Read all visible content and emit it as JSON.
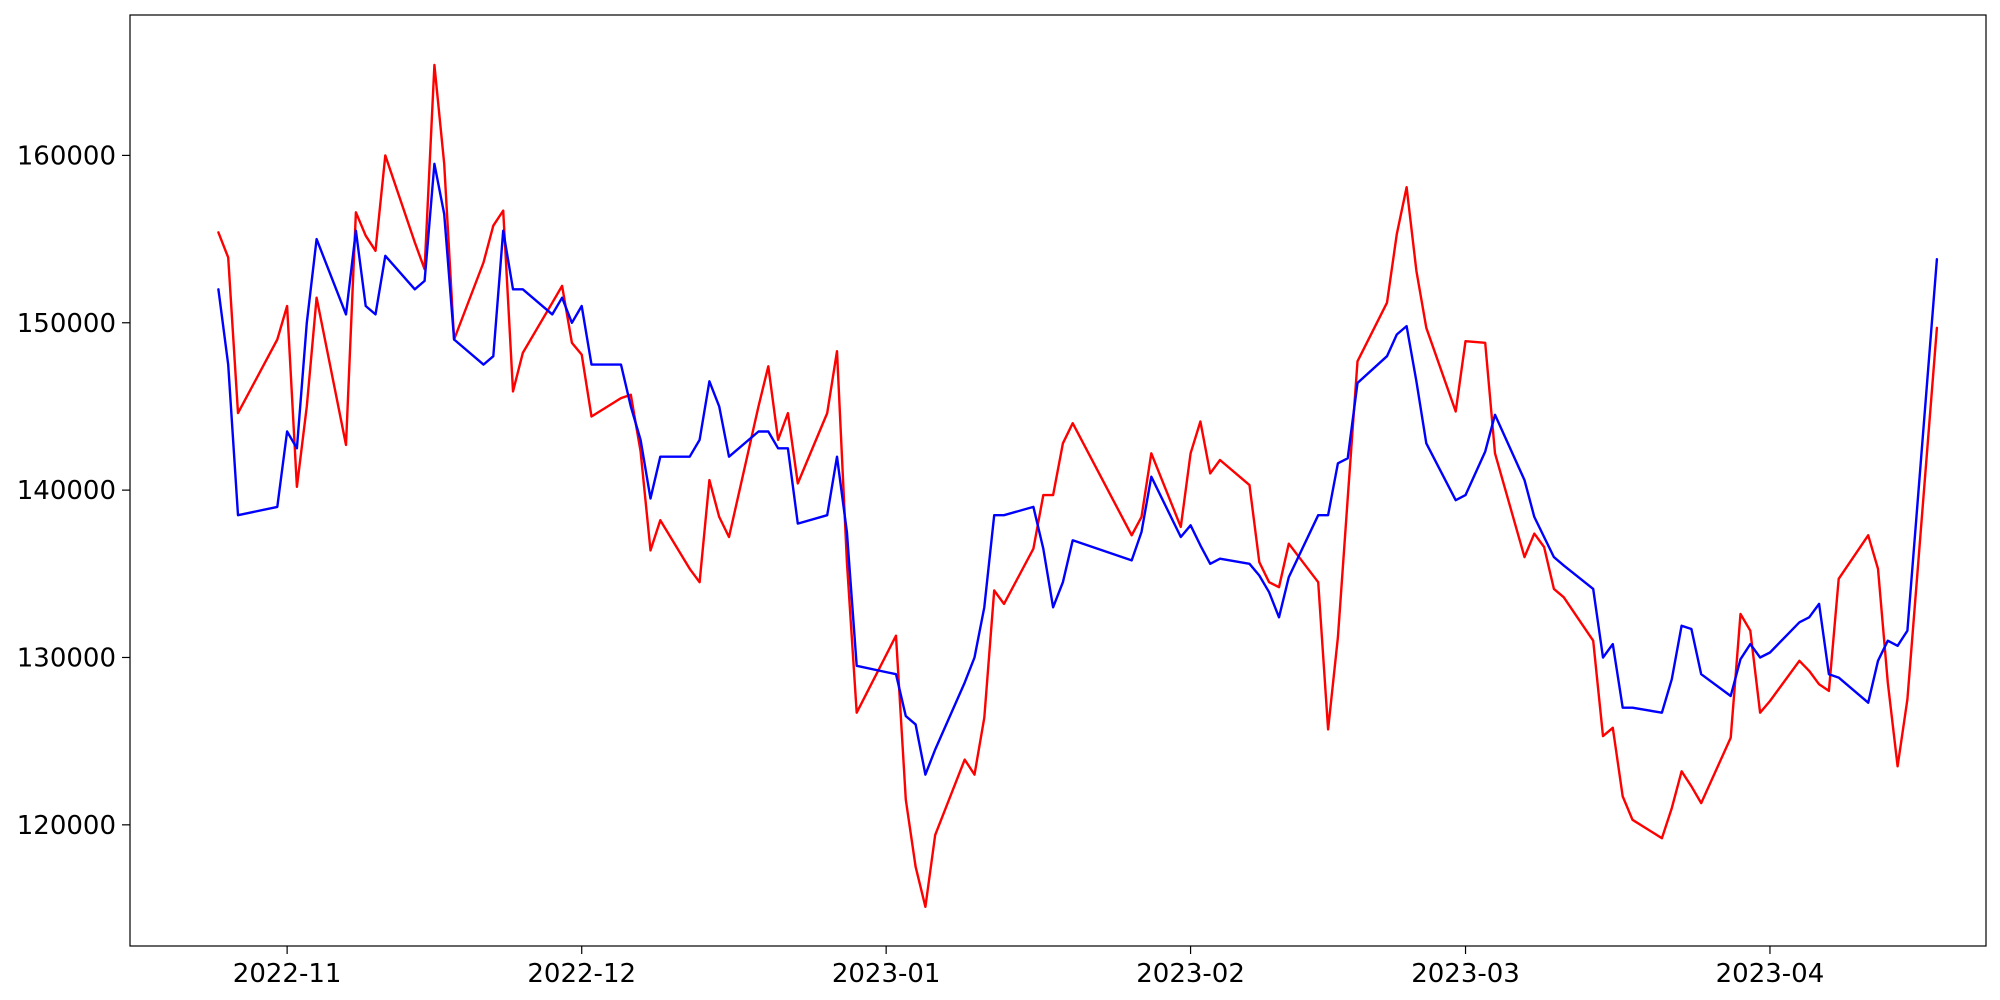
{
  "colors": {
    "background": "#ffffff",
    "axis": "#000000"
  },
  "chart_data": {
    "type": "line",
    "title": "",
    "xlabel": "",
    "ylabel": "",
    "x_type": "date",
    "xlim": [
      "2022-10-16",
      "2023-04-23"
    ],
    "ylim": [
      112760,
      168390
    ],
    "grid": false,
    "legend": "none",
    "x_ticks": [
      {
        "value": "2022-11-01",
        "label": "2022-11"
      },
      {
        "value": "2022-12-01",
        "label": "2022-12"
      },
      {
        "value": "2023-01-01",
        "label": "2023-01"
      },
      {
        "value": "2023-02-01",
        "label": "2023-02"
      },
      {
        "value": "2023-03-01",
        "label": "2023-03"
      },
      {
        "value": "2023-04-01",
        "label": "2023-04"
      }
    ],
    "y_ticks": [
      {
        "value": 120000,
        "label": "120000"
      },
      {
        "value": 130000,
        "label": "130000"
      },
      {
        "value": 140000,
        "label": "140000"
      },
      {
        "value": 150000,
        "label": "150000"
      },
      {
        "value": 160000,
        "label": "160000"
      }
    ],
    "series": [
      {
        "color": "#ff0000",
        "points": [
          [
            "2022-10-25",
            155400
          ],
          [
            "2022-10-26",
            153900
          ],
          [
            "2022-10-27",
            144600
          ],
          [
            "2022-10-31",
            149000
          ],
          [
            "2022-11-01",
            151000
          ],
          [
            "2022-11-02",
            140200
          ],
          [
            "2022-11-03",
            145000
          ],
          [
            "2022-11-04",
            151500
          ],
          [
            "2022-11-07",
            142700
          ],
          [
            "2022-11-08",
            156600
          ],
          [
            "2022-11-09",
            155200
          ],
          [
            "2022-11-10",
            154300
          ],
          [
            "2022-11-11",
            160000
          ],
          [
            "2022-11-14",
            154800
          ],
          [
            "2022-11-15",
            153200
          ],
          [
            "2022-11-16",
            165400
          ],
          [
            "2022-11-17",
            159500
          ],
          [
            "2022-11-18",
            149000
          ],
          [
            "2022-11-21",
            153600
          ],
          [
            "2022-11-22",
            155800
          ],
          [
            "2022-11-23",
            156700
          ],
          [
            "2022-11-24",
            145900
          ],
          [
            "2022-11-25",
            148200
          ],
          [
            "2022-11-28",
            151200
          ],
          [
            "2022-11-29",
            152200
          ],
          [
            "2022-11-30",
            148800
          ],
          [
            "2022-12-01",
            148100
          ],
          [
            "2022-12-02",
            144400
          ],
          [
            "2022-12-05",
            145500
          ],
          [
            "2022-12-06",
            145700
          ],
          [
            "2022-12-07",
            142300
          ],
          [
            "2022-12-08",
            136400
          ],
          [
            "2022-12-09",
            138200
          ],
          [
            "2022-12-12",
            135300
          ],
          [
            "2022-12-13",
            134500
          ],
          [
            "2022-12-14",
            140600
          ],
          [
            "2022-12-15",
            138400
          ],
          [
            "2022-12-16",
            137200
          ],
          [
            "2022-12-19",
            145000
          ],
          [
            "2022-12-20",
            147400
          ],
          [
            "2022-12-21",
            143000
          ],
          [
            "2022-12-22",
            144600
          ],
          [
            "2022-12-23",
            140400
          ],
          [
            "2022-12-26",
            144600
          ],
          [
            "2022-12-27",
            148300
          ],
          [
            "2022-12-28",
            135700
          ],
          [
            "2022-12-29",
            126700
          ],
          [
            "2023-01-02",
            131300
          ],
          [
            "2023-01-03",
            121500
          ],
          [
            "2023-01-04",
            117500
          ],
          [
            "2023-01-05",
            115100
          ],
          [
            "2023-01-06",
            119400
          ],
          [
            "2023-01-09",
            123900
          ],
          [
            "2023-01-10",
            123000
          ],
          [
            "2023-01-11",
            126400
          ],
          [
            "2023-01-12",
            134000
          ],
          [
            "2023-01-13",
            133200
          ],
          [
            "2023-01-16",
            136500
          ],
          [
            "2023-01-17",
            139700
          ],
          [
            "2023-01-18",
            139700
          ],
          [
            "2023-01-19",
            142800
          ],
          [
            "2023-01-20",
            144000
          ],
          [
            "2023-01-26",
            137300
          ],
          [
            "2023-01-27",
            138400
          ],
          [
            "2023-01-28",
            142200
          ],
          [
            "2023-01-31",
            137800
          ],
          [
            "2023-02-01",
            142200
          ],
          [
            "2023-02-02",
            144100
          ],
          [
            "2023-02-03",
            141000
          ],
          [
            "2023-02-04",
            141800
          ],
          [
            "2023-02-07",
            140300
          ],
          [
            "2023-02-08",
            135700
          ],
          [
            "2023-02-09",
            134500
          ],
          [
            "2023-02-10",
            134200
          ],
          [
            "2023-02-11",
            136800
          ],
          [
            "2023-02-14",
            134500
          ],
          [
            "2023-02-15",
            125700
          ],
          [
            "2023-02-16",
            131200
          ],
          [
            "2023-02-17",
            139500
          ],
          [
            "2023-02-18",
            147700
          ],
          [
            "2023-02-21",
            151200
          ],
          [
            "2023-02-22",
            155300
          ],
          [
            "2023-02-23",
            158100
          ],
          [
            "2023-02-24",
            153100
          ],
          [
            "2023-02-25",
            149700
          ],
          [
            "2023-02-28",
            144700
          ],
          [
            "2023-03-01",
            148900
          ],
          [
            "2023-03-03",
            148800
          ],
          [
            "2023-03-04",
            142200
          ],
          [
            "2023-03-07",
            136000
          ],
          [
            "2023-03-08",
            137400
          ],
          [
            "2023-03-09",
            136600
          ],
          [
            "2023-03-10",
            134100
          ],
          [
            "2023-03-11",
            133600
          ],
          [
            "2023-03-14",
            131000
          ],
          [
            "2023-03-15",
            125300
          ],
          [
            "2023-03-16",
            125800
          ],
          [
            "2023-03-17",
            121700
          ],
          [
            "2023-03-18",
            120300
          ],
          [
            "2023-03-21",
            119200
          ],
          [
            "2023-03-22",
            121000
          ],
          [
            "2023-03-23",
            123200
          ],
          [
            "2023-03-24",
            122300
          ],
          [
            "2023-03-25",
            121300
          ],
          [
            "2023-03-28",
            125200
          ],
          [
            "2023-03-29",
            132600
          ],
          [
            "2023-03-30",
            131600
          ],
          [
            "2023-03-31",
            126700
          ],
          [
            "2023-04-01",
            127400
          ],
          [
            "2023-04-04",
            129800
          ],
          [
            "2023-04-05",
            129200
          ],
          [
            "2023-04-06",
            128400
          ],
          [
            "2023-04-07",
            128000
          ],
          [
            "2023-04-08",
            134700
          ],
          [
            "2023-04-11",
            137300
          ],
          [
            "2023-04-12",
            135300
          ],
          [
            "2023-04-13",
            128500
          ],
          [
            "2023-04-14",
            123500
          ],
          [
            "2023-04-15",
            127500
          ],
          [
            "2023-04-18",
            149700
          ]
        ]
      },
      {
        "color": "#0000ff",
        "points": [
          [
            "2022-10-25",
            152000
          ],
          [
            "2022-10-26",
            147500
          ],
          [
            "2022-10-27",
            138500
          ],
          [
            "2022-10-31",
            139000
          ],
          [
            "2022-11-01",
            143500
          ],
          [
            "2022-11-02",
            142500
          ],
          [
            "2022-11-03",
            150000
          ],
          [
            "2022-11-04",
            155000
          ],
          [
            "2022-11-07",
            150500
          ],
          [
            "2022-11-08",
            155500
          ],
          [
            "2022-11-09",
            151000
          ],
          [
            "2022-11-10",
            150500
          ],
          [
            "2022-11-11",
            154000
          ],
          [
            "2022-11-14",
            152000
          ],
          [
            "2022-11-15",
            152500
          ],
          [
            "2022-11-16",
            159500
          ],
          [
            "2022-11-17",
            156500
          ],
          [
            "2022-11-18",
            149000
          ],
          [
            "2022-11-21",
            147500
          ],
          [
            "2022-11-22",
            148000
          ],
          [
            "2022-11-23",
            155500
          ],
          [
            "2022-11-24",
            152000
          ],
          [
            "2022-11-25",
            152000
          ],
          [
            "2022-11-28",
            150500
          ],
          [
            "2022-11-29",
            151500
          ],
          [
            "2022-11-30",
            150000
          ],
          [
            "2022-12-01",
            151000
          ],
          [
            "2022-12-02",
            147500
          ],
          [
            "2022-12-05",
            147500
          ],
          [
            "2022-12-06",
            145000
          ],
          [
            "2022-12-07",
            143000
          ],
          [
            "2022-12-08",
            139500
          ],
          [
            "2022-12-09",
            142000
          ],
          [
            "2022-12-12",
            142000
          ],
          [
            "2022-12-13",
            143000
          ],
          [
            "2022-12-14",
            146500
          ],
          [
            "2022-12-15",
            145000
          ],
          [
            "2022-12-16",
            142000
          ],
          [
            "2022-12-19",
            143500
          ],
          [
            "2022-12-20",
            143500
          ],
          [
            "2022-12-21",
            142500
          ],
          [
            "2022-12-22",
            142500
          ],
          [
            "2022-12-23",
            138000
          ],
          [
            "2022-12-26",
            138500
          ],
          [
            "2022-12-27",
            142000
          ],
          [
            "2022-12-28",
            137500
          ],
          [
            "2022-12-29",
            129500
          ],
          [
            "2023-01-02",
            129000
          ],
          [
            "2023-01-03",
            126500
          ],
          [
            "2023-01-04",
            126000
          ],
          [
            "2023-01-05",
            123000
          ],
          [
            "2023-01-06",
            124500
          ],
          [
            "2023-01-09",
            128500
          ],
          [
            "2023-01-10",
            130000
          ],
          [
            "2023-01-11",
            133000
          ],
          [
            "2023-01-12",
            138500
          ],
          [
            "2023-01-13",
            138500
          ],
          [
            "2023-01-16",
            139000
          ],
          [
            "2023-01-17",
            136500
          ],
          [
            "2023-01-18",
            133000
          ],
          [
            "2023-01-19",
            134500
          ],
          [
            "2023-01-20",
            137000
          ],
          [
            "2023-01-26",
            135800
          ],
          [
            "2023-01-27",
            137500
          ],
          [
            "2023-01-28",
            140800
          ],
          [
            "2023-01-31",
            137200
          ],
          [
            "2023-02-01",
            137900
          ],
          [
            "2023-02-02",
            136700
          ],
          [
            "2023-02-03",
            135600
          ],
          [
            "2023-02-04",
            135900
          ],
          [
            "2023-02-07",
            135600
          ],
          [
            "2023-02-08",
            134900
          ],
          [
            "2023-02-09",
            133900
          ],
          [
            "2023-02-10",
            132400
          ],
          [
            "2023-02-11",
            134800
          ],
          [
            "2023-02-14",
            138500
          ],
          [
            "2023-02-15",
            138500
          ],
          [
            "2023-02-16",
            141600
          ],
          [
            "2023-02-17",
            141900
          ],
          [
            "2023-02-18",
            146400
          ],
          [
            "2023-02-21",
            148000
          ],
          [
            "2023-02-22",
            149300
          ],
          [
            "2023-02-23",
            149800
          ],
          [
            "2023-02-24",
            146500
          ],
          [
            "2023-02-25",
            142800
          ],
          [
            "2023-02-28",
            139400
          ],
          [
            "2023-03-01",
            139700
          ],
          [
            "2023-03-03",
            142300
          ],
          [
            "2023-03-04",
            144500
          ],
          [
            "2023-03-07",
            140600
          ],
          [
            "2023-03-08",
            138400
          ],
          [
            "2023-03-09",
            137200
          ],
          [
            "2023-03-10",
            136000
          ],
          [
            "2023-03-11",
            135500
          ],
          [
            "2023-03-14",
            134100
          ],
          [
            "2023-03-15",
            130000
          ],
          [
            "2023-03-16",
            130800
          ],
          [
            "2023-03-17",
            127000
          ],
          [
            "2023-03-18",
            127000
          ],
          [
            "2023-03-21",
            126700
          ],
          [
            "2023-03-22",
            128700
          ],
          [
            "2023-03-23",
            131900
          ],
          [
            "2023-03-24",
            131700
          ],
          [
            "2023-03-25",
            129000
          ],
          [
            "2023-03-28",
            127700
          ],
          [
            "2023-03-29",
            129900
          ],
          [
            "2023-03-30",
            130800
          ],
          [
            "2023-03-31",
            130000
          ],
          [
            "2023-04-01",
            130300
          ],
          [
            "2023-04-04",
            132100
          ],
          [
            "2023-04-05",
            132400
          ],
          [
            "2023-04-06",
            133200
          ],
          [
            "2023-04-07",
            129000
          ],
          [
            "2023-04-08",
            128800
          ],
          [
            "2023-04-11",
            127300
          ],
          [
            "2023-04-12",
            129800
          ],
          [
            "2023-04-13",
            131000
          ],
          [
            "2023-04-14",
            130700
          ],
          [
            "2023-04-15",
            131600
          ],
          [
            "2023-04-18",
            153800
          ]
        ]
      }
    ]
  }
}
